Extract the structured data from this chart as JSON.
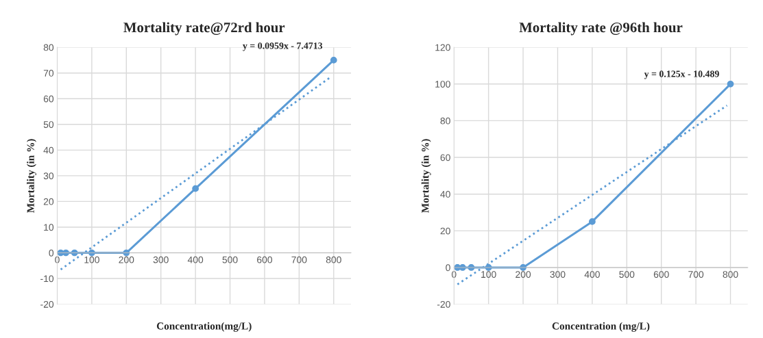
{
  "chart_data": [
    {
      "type": "line",
      "title": "Mortality rate@72rd hour",
      "xlabel": "Concentration(mg/L)",
      "ylabel": "Mortality (in %)",
      "xlim": [
        0,
        850
      ],
      "xticks": [
        0,
        100,
        200,
        300,
        400,
        500,
        600,
        700,
        800
      ],
      "ylim": [
        -20,
        80
      ],
      "yticks": [
        -20,
        -10,
        0,
        10,
        20,
        30,
        40,
        50,
        60,
        70,
        80
      ],
      "grid": true,
      "legend": false,
      "series": [
        {
          "color": "#5b9bd5",
          "x": [
            10,
            25,
            50,
            100,
            200,
            400,
            800
          ],
          "values": [
            0,
            0,
            0,
            0,
            0,
            25,
            75
          ],
          "marker": "circle",
          "line_style": "solid"
        },
        {
          "color": "#5b9bd5",
          "x": [
            10,
            790
          ],
          "values": [
            -6.5,
            68.3
          ],
          "marker": "none",
          "line_style": "dotted"
        }
      ],
      "annotations": [
        {
          "text": "y = 0.0959x - 7.4713",
          "x": 790,
          "y": 68.3
        }
      ]
    },
    {
      "type": "line",
      "title": "Mortality rate @96th hour",
      "xlabel": "Concentration (mg/L)",
      "ylabel": "Mortality (in %)",
      "xlim": [
        0,
        850
      ],
      "xticks": [
        0,
        100,
        200,
        300,
        400,
        500,
        600,
        700,
        800
      ],
      "ylim": [
        -20,
        120
      ],
      "yticks": [
        -20,
        0,
        20,
        40,
        60,
        80,
        100,
        120
      ],
      "grid": true,
      "legend": false,
      "series": [
        {
          "color": "#5b9bd5",
          "x": [
            10,
            25,
            50,
            100,
            200,
            400,
            800
          ],
          "values": [
            0,
            0,
            0,
            0,
            0,
            25,
            100
          ],
          "marker": "circle",
          "line_style": "solid"
        },
        {
          "color": "#5b9bd5",
          "x": [
            10,
            790
          ],
          "values": [
            -9.2,
            88.3
          ],
          "marker": "none",
          "line_style": "dotted"
        }
      ],
      "annotations": [
        {
          "text": "y = 0.125x - 10.489",
          "x": 790,
          "y": 88.3
        }
      ]
    }
  ]
}
